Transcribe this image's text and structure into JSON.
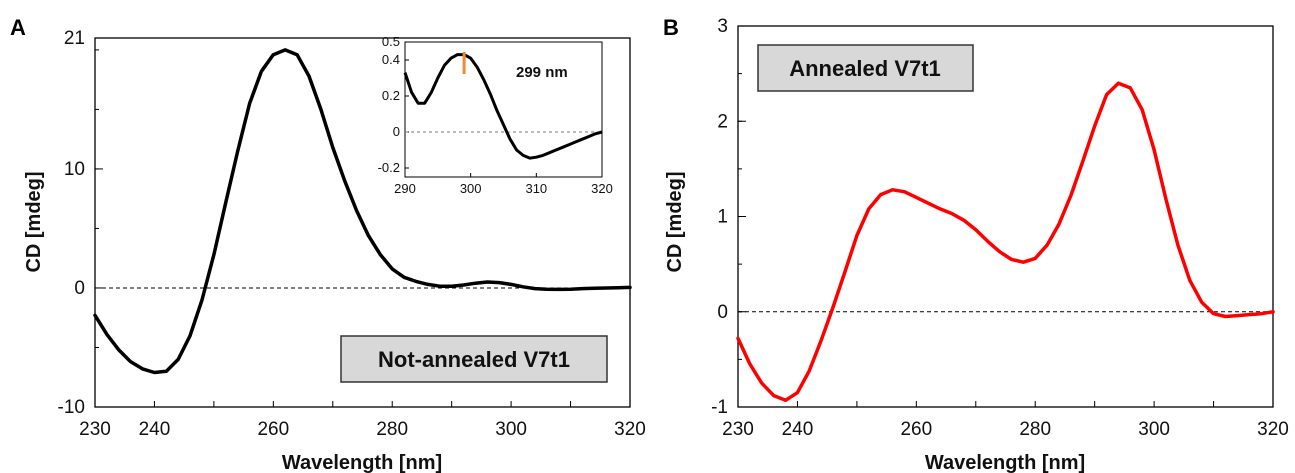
{
  "chart_data": [
    {
      "panel": "A",
      "type": "line",
      "xlabel": "Wavelength [nm]",
      "ylabel": "CD [mdeg]",
      "xlim": [
        230,
        320
      ],
      "ylim": [
        -10,
        21
      ],
      "xticks": [
        230,
        240,
        260,
        280,
        300,
        320
      ],
      "yticks": [
        -10,
        0,
        10,
        21
      ],
      "zero_line": true,
      "grid": false,
      "label_box": "Not-annealed V7t1",
      "line_color": "#000000",
      "series": [
        {
          "x": [
            230,
            232,
            234,
            236,
            238,
            240,
            242,
            244,
            246,
            248,
            250,
            252,
            254,
            256,
            258,
            260,
            262,
            264,
            266,
            268,
            270,
            272,
            274,
            276,
            278,
            280,
            282,
            284,
            286,
            288,
            290,
            292,
            294,
            296,
            298,
            300,
            302,
            304,
            306,
            308,
            310,
            312,
            314,
            316,
            318,
            320
          ],
          "y": [
            -2.3,
            -3.9,
            -5.2,
            -6.2,
            -6.8,
            -7.1,
            -7.0,
            -6.0,
            -4.0,
            -1.0,
            2.8,
            7.2,
            11.5,
            15.5,
            18.2,
            19.6,
            20.0,
            19.6,
            17.8,
            15.0,
            11.8,
            9.0,
            6.5,
            4.4,
            2.8,
            1.6,
            0.9,
            0.55,
            0.3,
            0.15,
            0.15,
            0.25,
            0.4,
            0.5,
            0.45,
            0.3,
            0.1,
            -0.05,
            -0.1,
            -0.12,
            -0.1,
            -0.05,
            -0.02,
            0.0,
            0.02,
            0.05
          ]
        }
      ],
      "inset": {
        "xlim": [
          290,
          320
        ],
        "ylim": [
          -0.25,
          0.5
        ],
        "xticks": [
          290,
          300,
          310,
          320
        ],
        "yticks": [
          -0.2,
          0,
          0.2,
          0.4,
          0.5
        ],
        "annotation": "299 nm",
        "marker_x": 299,
        "marker_color": "#f08a32",
        "zero_line": true,
        "series": [
          {
            "x": [
              290,
              291,
              292,
              293,
              294,
              295,
              296,
              297,
              298,
              299,
              300,
              301,
              302,
              303,
              304,
              305,
              306,
              307,
              308,
              309,
              310,
              311,
              312,
              313,
              314,
              315,
              316,
              317,
              318,
              319,
              320
            ],
            "y": [
              0.33,
              0.22,
              0.16,
              0.16,
              0.22,
              0.3,
              0.37,
              0.41,
              0.43,
              0.43,
              0.41,
              0.36,
              0.29,
              0.21,
              0.12,
              0.04,
              -0.04,
              -0.1,
              -0.13,
              -0.145,
              -0.14,
              -0.13,
              -0.115,
              -0.1,
              -0.085,
              -0.07,
              -0.055,
              -0.04,
              -0.025,
              -0.01,
              0.0
            ]
          }
        ]
      }
    },
    {
      "panel": "B",
      "type": "line",
      "xlabel": "Wavelength [nm]",
      "ylabel": "CD [mdeg]",
      "xlim": [
        230,
        320
      ],
      "ylim": [
        -1,
        3
      ],
      "xticks": [
        230,
        240,
        260,
        280,
        300,
        320
      ],
      "yticks": [
        -1,
        0,
        1,
        2,
        3
      ],
      "zero_line": true,
      "grid": false,
      "label_box": "Annealed V7t1",
      "line_color": "#ff0000",
      "series": [
        {
          "x": [
            230,
            232,
            234,
            236,
            238,
            240,
            242,
            244,
            246,
            248,
            250,
            252,
            254,
            256,
            258,
            260,
            262,
            264,
            266,
            268,
            270,
            272,
            274,
            276,
            278,
            280,
            282,
            284,
            286,
            288,
            290,
            292,
            294,
            296,
            298,
            300,
            302,
            304,
            306,
            308,
            310,
            312,
            314,
            316,
            318,
            320
          ],
          "y": [
            -0.28,
            -0.55,
            -0.75,
            -0.88,
            -0.93,
            -0.85,
            -0.62,
            -0.3,
            0.05,
            0.42,
            0.8,
            1.08,
            1.23,
            1.28,
            1.26,
            1.2,
            1.14,
            1.08,
            1.03,
            0.96,
            0.86,
            0.74,
            0.63,
            0.55,
            0.52,
            0.56,
            0.7,
            0.92,
            1.22,
            1.58,
            1.95,
            2.28,
            2.4,
            2.35,
            2.12,
            1.7,
            1.18,
            0.7,
            0.33,
            0.1,
            -0.02,
            -0.05,
            -0.04,
            -0.03,
            -0.02,
            0.0
          ]
        }
      ]
    }
  ]
}
